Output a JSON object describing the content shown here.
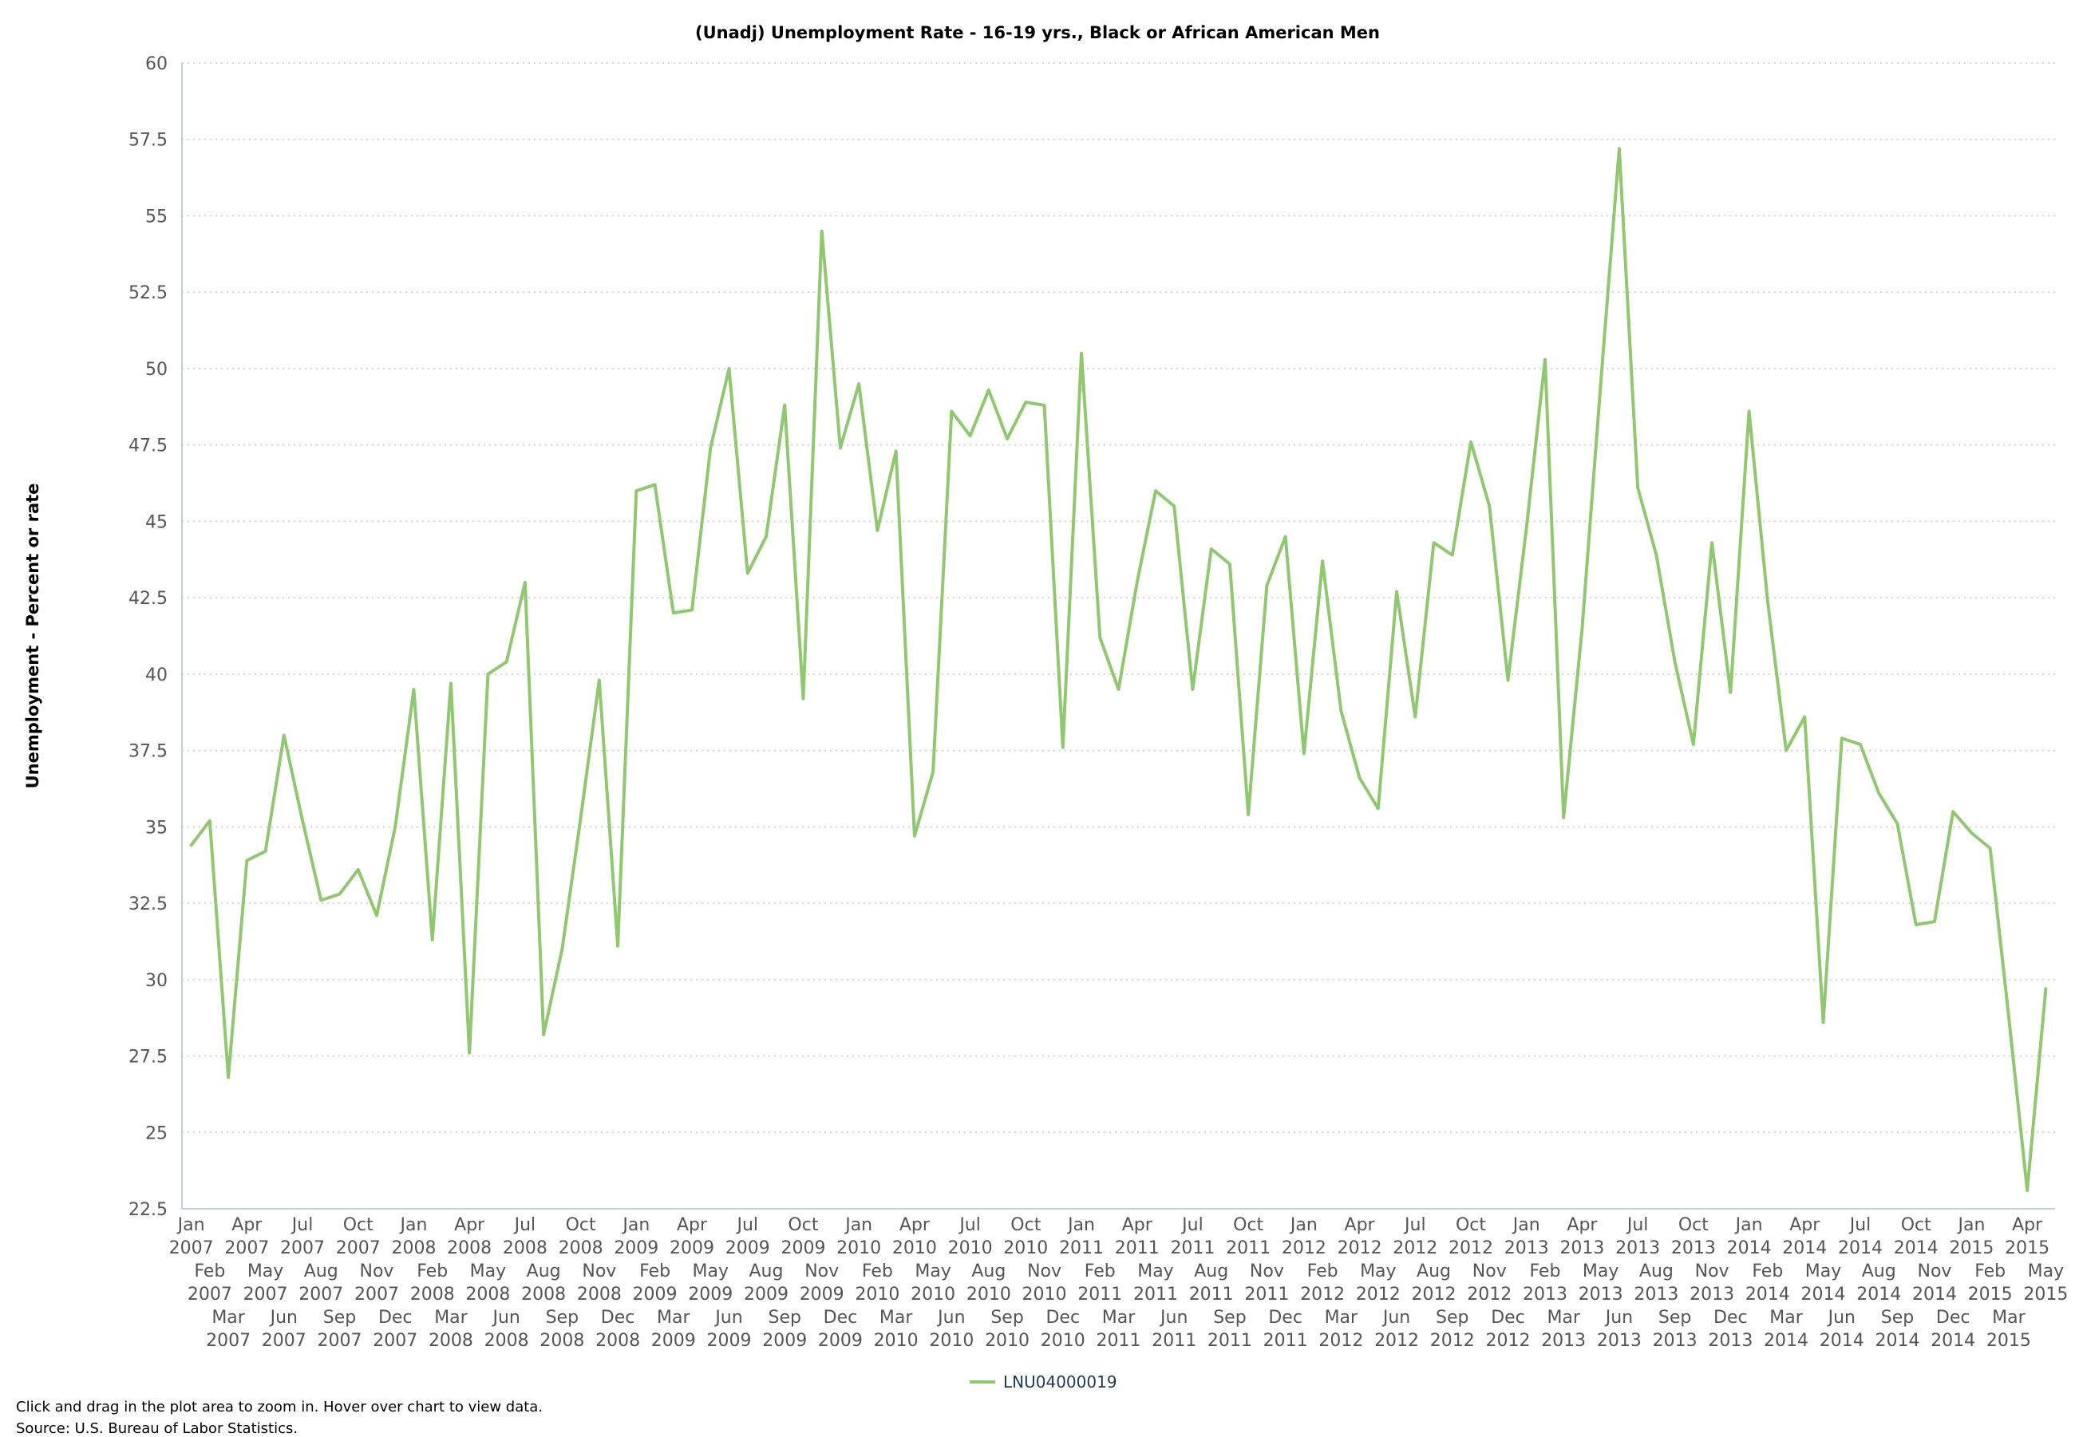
{
  "footer": {
    "hint": "Click and drag in the plot area to zoom in. Hover over chart to view data.",
    "source": "Source: U.S. Bureau of Labor Statistics."
  },
  "chart_data": {
    "type": "line",
    "title": "(Unadj) Unemployment Rate - 16-19 yrs., Black or African American Men",
    "xlabel": "",
    "ylabel": "Unemployment - Percent or rate",
    "ylim": [
      22.5,
      60
    ],
    "yticks": [
      22.5,
      25,
      27.5,
      30,
      32.5,
      35,
      37.5,
      40,
      42.5,
      45,
      47.5,
      50,
      52.5,
      55,
      57.5,
      60
    ],
    "grid": true,
    "legend_position": "bottom-center",
    "line_color": "#90c870",
    "x": [
      "Jan 2007",
      "Feb 2007",
      "Mar 2007",
      "Apr 2007",
      "May 2007",
      "Jun 2007",
      "Jul 2007",
      "Aug 2007",
      "Sep 2007",
      "Oct 2007",
      "Nov 2007",
      "Dec 2007",
      "Jan 2008",
      "Feb 2008",
      "Mar 2008",
      "Apr 2008",
      "May 2008",
      "Jun 2008",
      "Jul 2008",
      "Aug 2008",
      "Sep 2008",
      "Oct 2008",
      "Nov 2008",
      "Dec 2008",
      "Jan 2009",
      "Feb 2009",
      "Mar 2009",
      "Apr 2009",
      "May 2009",
      "Jun 2009",
      "Jul 2009",
      "Aug 2009",
      "Sep 2009",
      "Oct 2009",
      "Nov 2009",
      "Dec 2009",
      "Jan 2010",
      "Feb 2010",
      "Mar 2010",
      "Apr 2010",
      "May 2010",
      "Jun 2010",
      "Jul 2010",
      "Aug 2010",
      "Sep 2010",
      "Oct 2010",
      "Nov 2010",
      "Dec 2010",
      "Jan 2011",
      "Feb 2011",
      "Mar 2011",
      "Apr 2011",
      "May 2011",
      "Jun 2011",
      "Jul 2011",
      "Aug 2011",
      "Sep 2011",
      "Oct 2011",
      "Nov 2011",
      "Dec 2011",
      "Jan 2012",
      "Feb 2012",
      "Mar 2012",
      "Apr 2012",
      "May 2012",
      "Jun 2012",
      "Jul 2012",
      "Aug 2012",
      "Sep 2012",
      "Oct 2012",
      "Nov 2012",
      "Dec 2012",
      "Jan 2013",
      "Feb 2013",
      "Mar 2013",
      "Apr 2013",
      "May 2013",
      "Jun 2013",
      "Jul 2013",
      "Aug 2013",
      "Sep 2013",
      "Oct 2013",
      "Nov 2013",
      "Dec 2013",
      "Jan 2014",
      "Feb 2014",
      "Mar 2014",
      "Apr 2014",
      "May 2014",
      "Jun 2014",
      "Jul 2014",
      "Aug 2014",
      "Sep 2014",
      "Oct 2014",
      "Nov 2014",
      "Dec 2014",
      "Jan 2015",
      "Feb 2015",
      "Mar 2015",
      "Apr 2015",
      "May 2015"
    ],
    "series": [
      {
        "name": "LNU04000019",
        "values": [
          34.4,
          35.2,
          26.8,
          33.9,
          34.2,
          38.0,
          35.2,
          32.6,
          32.8,
          33.6,
          32.1,
          35.0,
          39.5,
          31.3,
          39.7,
          27.6,
          40.0,
          40.4,
          43.0,
          28.2,
          31.0,
          35.3,
          39.8,
          31.1,
          46.0,
          46.2,
          42.0,
          42.1,
          47.4,
          50.0,
          43.3,
          44.5,
          48.8,
          39.2,
          54.5,
          47.4,
          49.5,
          44.7,
          47.3,
          34.7,
          36.8,
          48.6,
          47.8,
          49.3,
          47.7,
          48.9,
          48.8,
          37.6,
          50.5,
          41.2,
          39.5,
          43.0,
          46.0,
          45.5,
          39.5,
          44.1,
          43.6,
          35.4,
          42.9,
          44.5,
          37.4,
          43.7,
          38.8,
          36.6,
          35.6,
          42.7,
          38.6,
          44.3,
          43.9,
          47.6,
          45.5,
          39.8,
          44.8,
          50.3,
          35.3,
          41.5,
          49.5,
          57.2,
          46.1,
          43.9,
          40.4,
          37.7,
          44.3,
          39.4,
          48.6,
          42.4,
          37.5,
          38.6,
          28.6,
          37.9,
          37.7,
          36.1,
          35.1,
          31.8,
          31.9,
          35.5,
          34.8,
          34.3,
          28.8,
          23.1,
          29.7
        ]
      }
    ]
  }
}
